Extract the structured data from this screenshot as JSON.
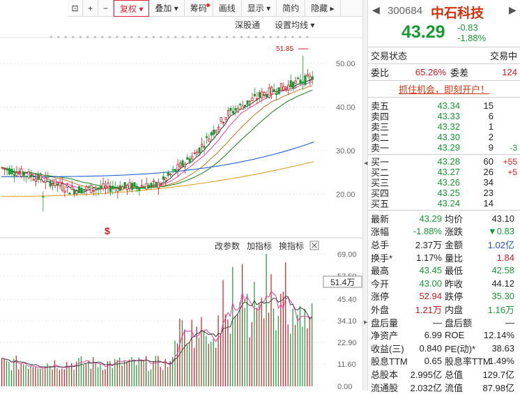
{
  "toolbar": {
    "fq": "复权",
    "overlay": "叠加",
    "chip": "筹码",
    "line": "画线",
    "display": "显示",
    "brief": "简约",
    "hide": "隐藏"
  },
  "chart": {
    "sgt": "深股通",
    "ma_setting": "设置均线",
    "peak_label": "51.85",
    "price_ticks": [
      "50.00",
      "40.00",
      "30.00",
      "20.00"
    ],
    "vol_ticks": [
      "69.00",
      "57.50",
      "45.40",
      "34.10",
      "22.90",
      "11.60",
      "0.00"
    ],
    "vol_value": "51.4万",
    "vol_btns": {
      "params": "改参数",
      "add": "加指标",
      "switch": "换指标"
    },
    "dollar": "$"
  },
  "colors": {
    "up": "#d2191e",
    "down": "#169a32",
    "ma5": "#222222",
    "ma10": "#e040a0",
    "ma20": "#c07020",
    "ma30": "#108010",
    "ma60": "#2060d0",
    "ma120": "#e0a020"
  },
  "stock": {
    "code": "300684",
    "name": "中石科技",
    "price": "43.29",
    "change": "-0.83",
    "change_pct": "-1.88%"
  },
  "status": {
    "label": "交易状态",
    "value": "交易中"
  },
  "ratio": {
    "wb_label": "委比",
    "wb_value": "65.26%",
    "wc_label": "委差",
    "wc_value": "124"
  },
  "promo": "抓住机会，即刻开户！",
  "sell": [
    {
      "label": "卖五",
      "price": "43.34",
      "vol": "15",
      "chg": ""
    },
    {
      "label": "卖四",
      "price": "43.33",
      "vol": "6",
      "chg": ""
    },
    {
      "label": "卖三",
      "price": "43.32",
      "vol": "1",
      "chg": ""
    },
    {
      "label": "卖二",
      "price": "43.30",
      "vol": "2",
      "chg": ""
    },
    {
      "label": "卖一",
      "price": "43.29",
      "vol": "9",
      "chg": "-3"
    }
  ],
  "buy": [
    {
      "label": "买一",
      "price": "43.28",
      "vol": "60",
      "chg": "+55"
    },
    {
      "label": "买二",
      "price": "43.27",
      "vol": "26",
      "chg": "+5"
    },
    {
      "label": "买三",
      "price": "43.26",
      "vol": "34",
      "chg": ""
    },
    {
      "label": "买四",
      "price": "43.25",
      "vol": "23",
      "chg": ""
    },
    {
      "label": "买五",
      "price": "43.24",
      "vol": "14",
      "chg": ""
    }
  ],
  "stats": [
    {
      "l1": "最新",
      "v1": "43.29",
      "c1": "grn",
      "l2": "均价",
      "v2": "43.10",
      "c2": ""
    },
    {
      "l1": "涨幅",
      "v1": "-1.88%",
      "c1": "grn",
      "l2": "涨跌",
      "v2": "▼0.83",
      "c2": "grn"
    },
    {
      "l1": "总手",
      "v1": "2.37万",
      "c1": "",
      "l2": "金额",
      "v2": "1.02亿",
      "c2": "blu"
    },
    {
      "l1": "换手*",
      "v1": "1.17%",
      "c1": "",
      "l2": "量比",
      "v2": "1.84",
      "c2": "red"
    },
    {
      "l1": "最高",
      "v1": "43.45",
      "c1": "grn",
      "l2": "最低",
      "v2": "42.58",
      "c2": "grn"
    },
    {
      "l1": "今开",
      "v1": "43.00",
      "c1": "grn",
      "l2": "昨收",
      "v2": "44.12",
      "c2": ""
    },
    {
      "l1": "涨停",
      "v1": "52.94",
      "c1": "red",
      "l2": "跌停",
      "v2": "35.30",
      "c2": "grn"
    },
    {
      "l1": "外盘",
      "v1": "1.21万",
      "c1": "red",
      "l2": "内盘",
      "v2": "1.16万",
      "c2": "grn"
    },
    {
      "l1": "盘后量",
      "v1": "—",
      "c1": "",
      "l2": "盘后额",
      "v2": "—",
      "c2": ""
    },
    {
      "l1": "净资产",
      "v1": "6.99",
      "c1": "",
      "l2": "ROE",
      "v2": "12.14%",
      "c2": ""
    },
    {
      "l1": "收益(三)",
      "v1": "0.840",
      "c1": "",
      "l2": "PE(动)*",
      "v2": "38.63",
      "c2": ""
    },
    {
      "l1": "股息TTM",
      "v1": "0.65",
      "c1": "",
      "l2": "股息率TTM",
      "v2": "1.49%",
      "c2": ""
    },
    {
      "l1": "总股本",
      "v1": "2.995亿",
      "c1": "",
      "l2": "总值",
      "v2": "129.7亿",
      "c2": ""
    },
    {
      "l1": "流通股",
      "v1": "2.032亿",
      "c1": "",
      "l2": "流值",
      "v2": "87.98亿",
      "c2": ""
    }
  ],
  "chart_data": {
    "type": "candlestick",
    "price_range": [
      14,
      54
    ],
    "volume_range": [
      0,
      72
    ]
  }
}
